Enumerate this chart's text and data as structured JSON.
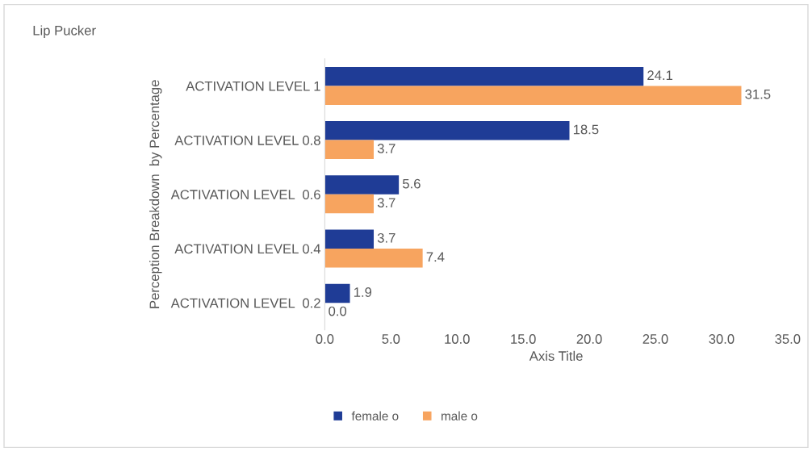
{
  "chart_data": {
    "type": "bar",
    "orientation": "horizontal",
    "title": "Lip Pucker",
    "xlabel": "Axis Title",
    "ylabel": "Perception Breakdown  by Percentage",
    "categories": [
      "ACTIVATION LEVEL 1",
      "ACTIVATION LEVEL 0.8",
      "ACTIVATION LEVEL  0.6",
      "ACTIVATION LEVEL 0.4",
      "ACTIVATION LEVEL  0.2"
    ],
    "series": [
      {
        "name": "female o",
        "color": "#1f3c96",
        "values": [
          24.1,
          18.5,
          5.6,
          3.7,
          1.9
        ],
        "value_labels": [
          "24.1",
          "18.5",
          "5.6",
          "3.7",
          "1.9"
        ]
      },
      {
        "name": "male o",
        "color": "#f7a45f",
        "values": [
          31.5,
          3.7,
          3.7,
          7.4,
          0
        ],
        "value_labels": [
          "31.5",
          "3.7",
          "3.7",
          "7.4",
          "0.0"
        ]
      }
    ],
    "xlim": [
      0,
      35
    ],
    "xticks": [
      {
        "value": 0,
        "label": "0.0"
      },
      {
        "value": 5,
        "label": "5.0"
      },
      {
        "value": 10,
        "label": "10.0"
      },
      {
        "value": 15,
        "label": "15.0"
      },
      {
        "value": 20,
        "label": "20.0"
      },
      {
        "value": 25,
        "label": "25.0"
      },
      {
        "value": 30,
        "label": "30.0"
      },
      {
        "value": 35,
        "label": "35.0"
      }
    ],
    "grid": false,
    "legend": "bottom"
  }
}
